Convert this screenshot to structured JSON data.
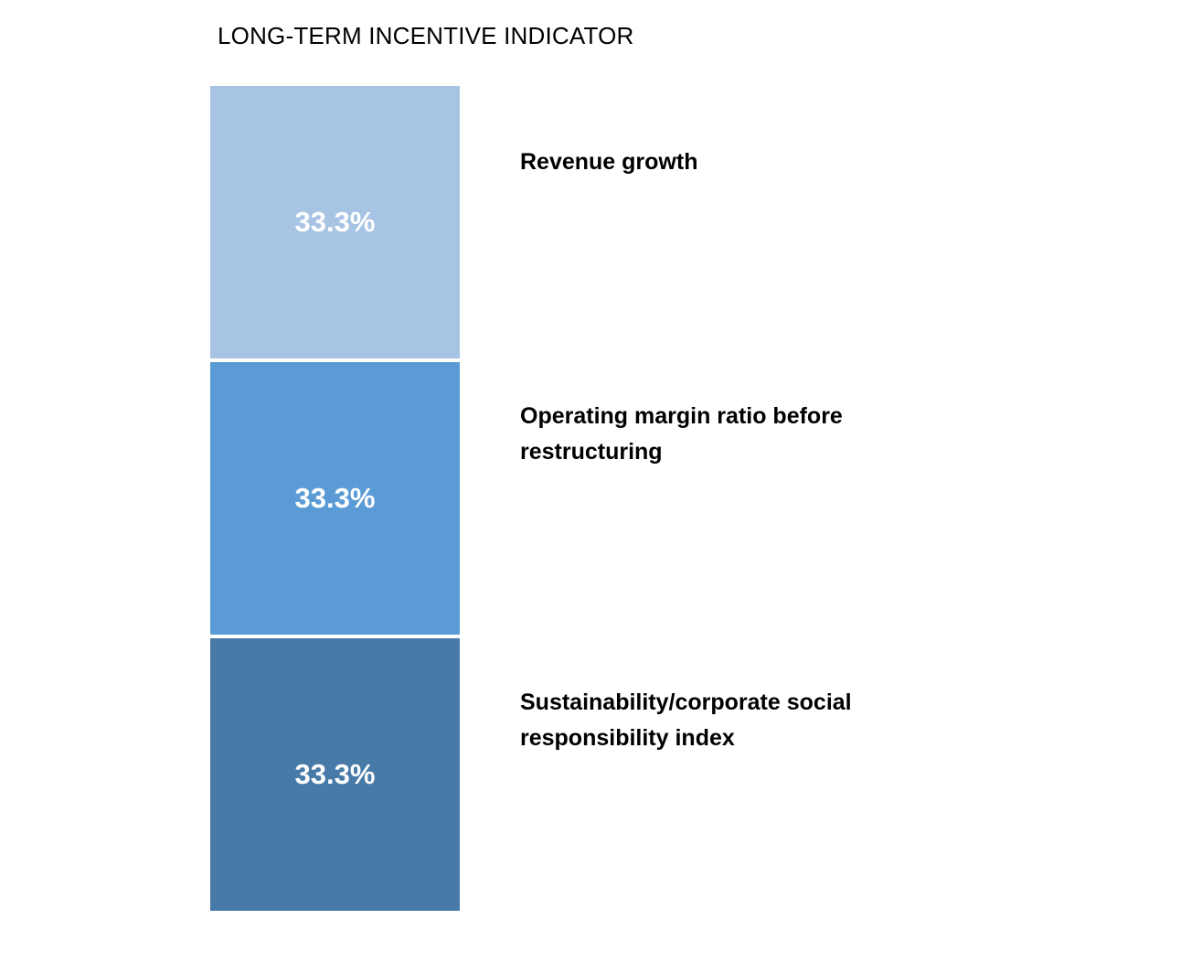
{
  "chart_data": {
    "type": "bar",
    "subtype": "stacked-100-single-column",
    "title": "LONG-TERM INCENTIVE INDICATOR",
    "categories": [
      "Revenue growth",
      "Operating margin ratio before restructuring",
      "Sustainability/corporate social responsibility index"
    ],
    "values": [
      33.3,
      33.3,
      33.3
    ],
    "value_labels": [
      "33.3%",
      "33.3%",
      "33.3%"
    ],
    "colors": [
      "#A8C4E4",
      "#5B9BD5",
      "#487AA8"
    ],
    "value_label_color": "#FFFFFF",
    "title_color": "#000000",
    "category_label_color": "#000000",
    "background_color": "#FFFFFF",
    "legend_position": "right",
    "grid": false,
    "axes_visible": false
  }
}
